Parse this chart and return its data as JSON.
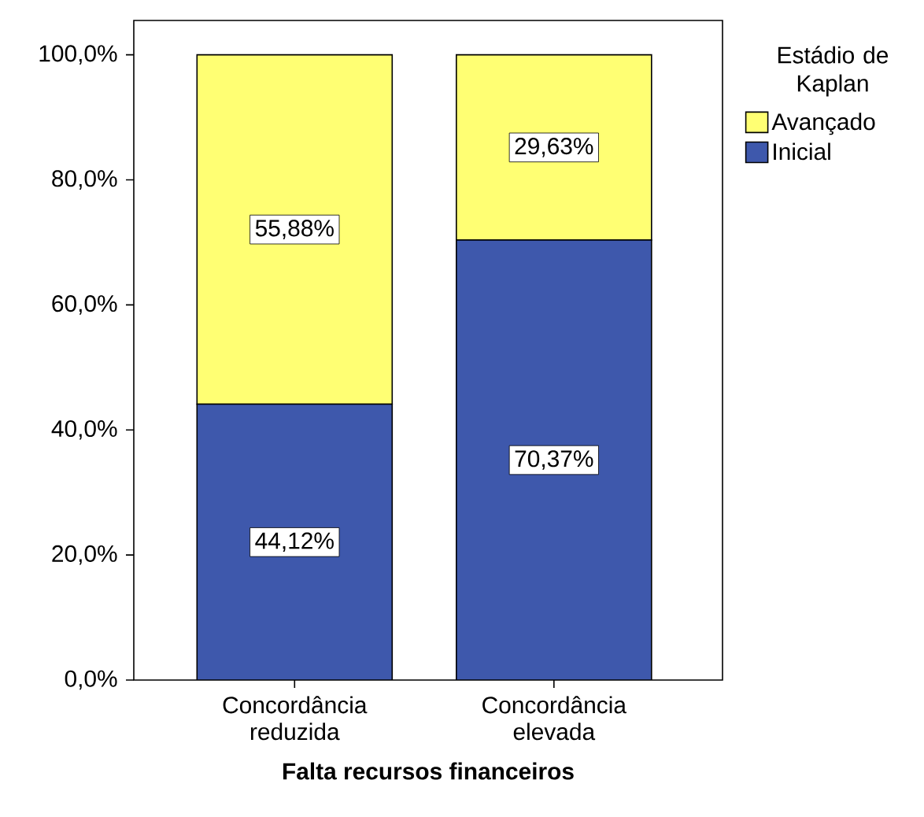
{
  "chart_data": {
    "type": "bar",
    "stacked": true,
    "xlabel": "**Falta recursos financeiros**",
    "legend_title": "Estádio de Kaplan",
    "legend": "right",
    "categories": [
      "Concordância reduzida",
      "Concordância elevada"
    ],
    "series": [
      {
        "name": "Inicial",
        "color": "#3e58ac",
        "values": [
          44.12,
          70.37
        ],
        "value_labels": [
          "44,12%",
          "70,37%"
        ]
      },
      {
        "name": "Avançado",
        "color": "#ffff73",
        "values": [
          55.88,
          29.63
        ],
        "value_labels": [
          "55,88%",
          "29,63%"
        ]
      }
    ],
    "ylim": [
      0,
      105.5
    ],
    "yticks": [
      {
        "value": 0,
        "label": "0,0%"
      },
      {
        "value": 20,
        "label": "20,0%"
      },
      {
        "value": 40,
        "label": "40,0%"
      },
      {
        "value": 60,
        "label": "60,0%"
      },
      {
        "value": 80,
        "label": "80,0%"
      },
      {
        "value": 100,
        "label": "100,0%"
      }
    ]
  }
}
